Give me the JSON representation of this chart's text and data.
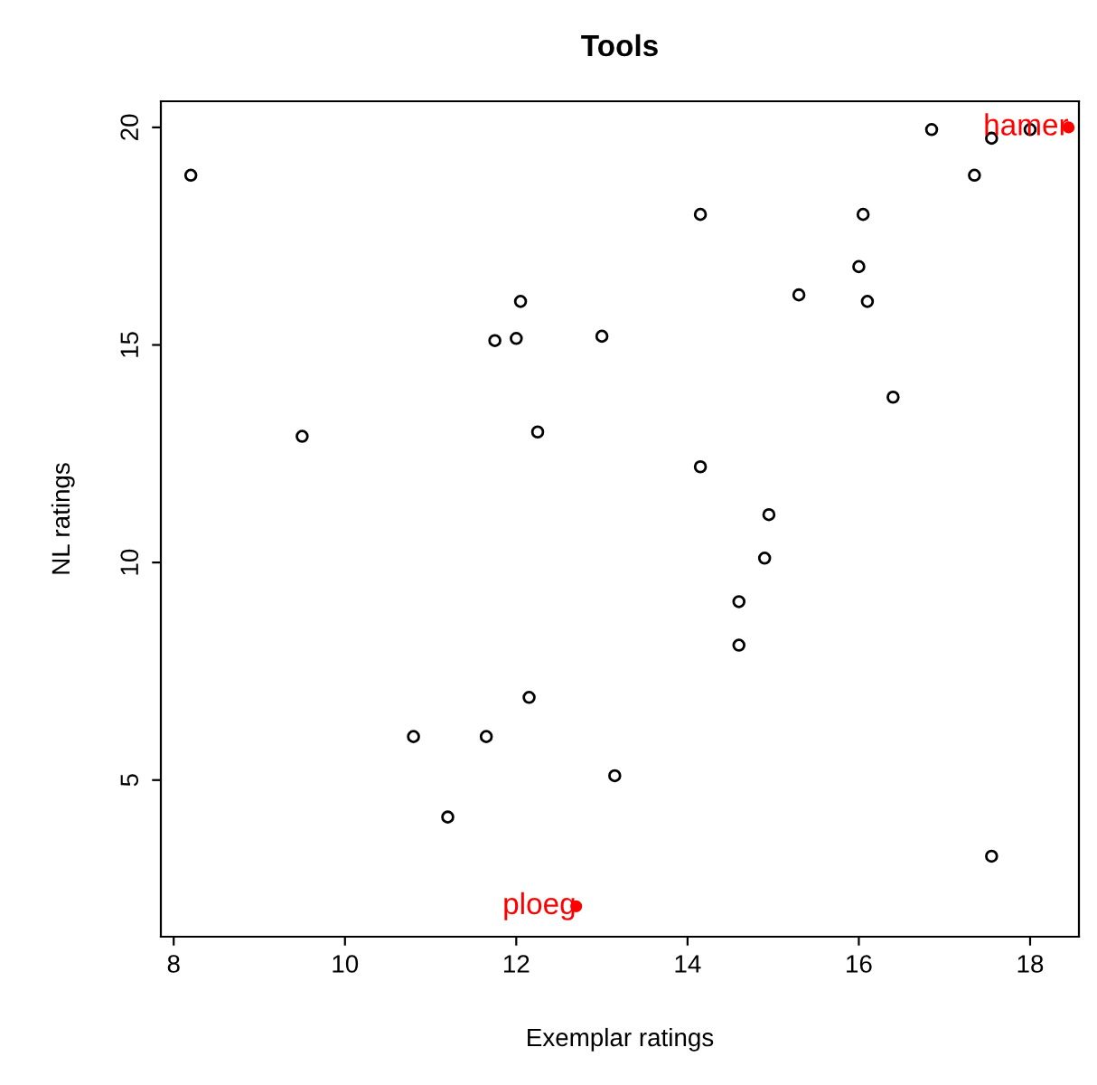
{
  "chart_data": {
    "type": "scatter",
    "title": "Tools",
    "xlabel": "Exemplar ratings",
    "ylabel": "NL ratings",
    "xlim": [
      7.85,
      18.57
    ],
    "ylim": [
      1.4,
      20.6
    ],
    "xticks": [
      8,
      10,
      12,
      14,
      16,
      18
    ],
    "yticks": [
      5,
      10,
      15,
      20
    ],
    "grid": false,
    "marker": "circle",
    "series": [
      {
        "color": "#000000",
        "x": [
          8.2,
          9.5,
          10.8,
          11.2,
          11.65,
          11.75,
          12.0,
          12.05,
          12.25,
          12.15,
          13.0,
          13.15,
          14.15,
          14.15,
          14.95,
          14.9,
          14.6,
          14.6,
          15.3,
          16.0,
          16.05,
          16.1,
          16.4,
          16.85,
          17.55,
          17.35,
          17.55,
          18.0
        ],
        "values": [
          18.9,
          12.9,
          6.0,
          4.15,
          6.0,
          15.1,
          15.15,
          16.0,
          13.0,
          6.9,
          15.2,
          5.1,
          18.0,
          12.2,
          11.1,
          10.1,
          9.1,
          8.1,
          16.15,
          16.8,
          18.0,
          16.0,
          13.8,
          19.95,
          19.75,
          18.9,
          3.25,
          19.95
        ]
      },
      {
        "color": "#ff0000",
        "x": [
          18.45,
          12.7
        ],
        "values": [
          20.0,
          2.1
        ]
      }
    ],
    "annotations": [
      {
        "text": "hamer",
        "x": 18.45,
        "y": 20.0
      },
      {
        "text": "ploeg",
        "x": 12.7,
        "y": 2.1
      }
    ]
  }
}
